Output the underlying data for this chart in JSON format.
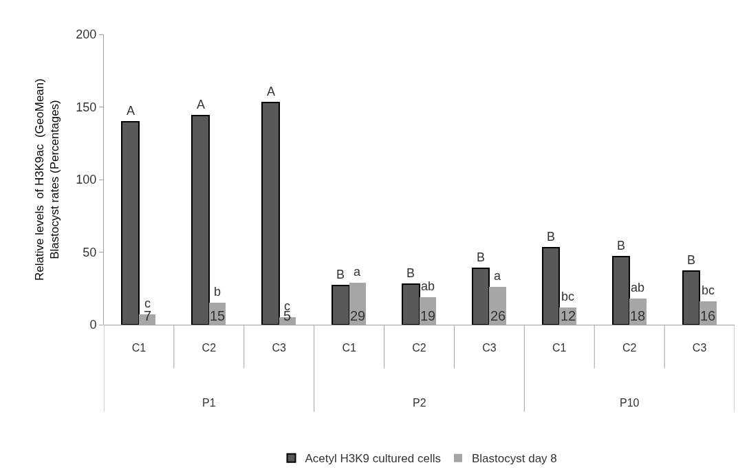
{
  "chart_data": {
    "type": "bar",
    "ylabel": "Relative levels  of H3K9ac  (GeoMean)\nBlastocyst rates (Percentages)",
    "categories": [
      "C1",
      "C2",
      "C3",
      "C1",
      "C2",
      "C3",
      "C1",
      "C2",
      "C3"
    ],
    "series": [
      {
        "name": "Acetyl H3K9 cultured cells",
        "color": "#595959",
        "values": [
          140,
          144,
          153,
          27,
          28,
          39,
          53,
          47,
          37
        ]
      },
      {
        "name": "Blastocyst day 8",
        "color": "#a6a6a6",
        "values": [
          7,
          15,
          5,
          29,
          19,
          26,
          12,
          18,
          16
        ],
        "value_labels": [
          "7",
          "15",
          "5",
          "29",
          "19",
          "26",
          "12",
          "18",
          "16"
        ]
      }
    ],
    "ylim": [
      0,
      200
    ],
    "yticks": [
      0,
      50,
      100,
      150,
      200
    ],
    "legend": "bottom",
    "annotations": [
      "P1",
      "P2",
      "P10",
      {
        "text": "A",
        "y": 140
      },
      {
        "text": "A",
        "y": 144
      },
      {
        "text": "A",
        "y": 153
      },
      {
        "text": "B",
        "y": 27
      },
      {
        "text": "B",
        "y": 28
      },
      {
        "text": "B",
        "y": 39
      },
      {
        "text": "B",
        "y": 53
      },
      {
        "text": "B",
        "y": 47
      },
      {
        "text": "B",
        "y": 37
      },
      {
        "text": "c",
        "y": 7
      },
      {
        "text": "b",
        "y": 15
      },
      {
        "text": "c",
        "y": 5
      },
      {
        "text": "a",
        "y": 29
      },
      {
        "text": "ab",
        "y": 19
      },
      {
        "text": "a",
        "y": 26
      },
      {
        "text": "bc",
        "y": 12
      },
      {
        "text": "ab",
        "y": 18
      },
      {
        "text": "bc",
        "y": 16
      }
    ]
  }
}
